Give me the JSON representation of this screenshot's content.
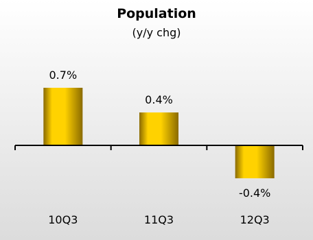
{
  "chart_data": {
    "type": "bar",
    "title": "Population",
    "subtitle": "(y/y chg)",
    "categories": [
      "10Q3",
      "11Q3",
      "12Q3"
    ],
    "values": [
      0.7,
      0.4,
      -0.4
    ],
    "value_labels": [
      "0.7%",
      "0.4%",
      "-0.4%"
    ],
    "ylim": [
      -0.6,
      1.0
    ],
    "grid": false,
    "legend": "none",
    "colors": {
      "bar_light": "#FFD200",
      "bar_dark": "#8A6A00",
      "background_top": "#FFFFFF",
      "background_bottom": "#DCDCDC",
      "axis": "#000000",
      "text": "#000000"
    }
  }
}
